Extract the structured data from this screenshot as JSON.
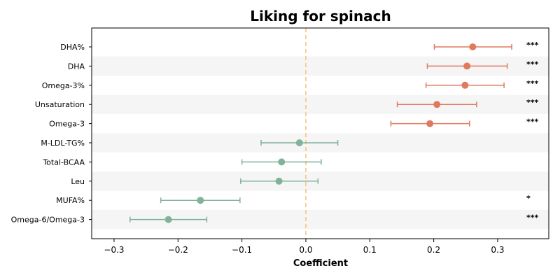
{
  "chart_data": {
    "type": "scatter",
    "title": "Liking for spinach",
    "xlabel": "Coefficient",
    "ylabel": "",
    "xlim": [
      -0.335,
      0.38
    ],
    "xticks": [
      -0.3,
      -0.2,
      -0.1,
      0.0,
      0.1,
      0.2,
      0.3
    ],
    "xtick_labels": [
      "−0.3",
      "−0.2",
      "−0.1",
      "0.0",
      "0.1",
      "0.2",
      "0.3"
    ],
    "reference_line": {
      "x": 0,
      "style": "dashed",
      "color": "#f5c27a"
    },
    "colors": {
      "positive": "#e07a5f",
      "negative": "#81b29a",
      "band": "#f5f5f5"
    },
    "series": [
      {
        "values": [
          {
            "label": "DHA%",
            "estimate": 0.261,
            "ci": [
              0.201,
              0.322
            ],
            "sig": "***"
          },
          {
            "label": "DHA",
            "estimate": 0.252,
            "ci": [
              0.19,
              0.315
            ],
            "sig": "***"
          },
          {
            "label": "Omega-3%",
            "estimate": 0.249,
            "ci": [
              0.188,
              0.31
            ],
            "sig": "***"
          },
          {
            "label": "Unsaturation",
            "estimate": 0.205,
            "ci": [
              0.143,
              0.267
            ],
            "sig": "***"
          },
          {
            "label": "Omega-3",
            "estimate": 0.194,
            "ci": [
              0.133,
              0.256
            ],
            "sig": "***"
          },
          {
            "label": "M-LDL-TG%",
            "estimate": -0.01,
            "ci": [
              -0.07,
              0.05
            ],
            "sig": ""
          },
          {
            "label": "Total-BCAA",
            "estimate": -0.038,
            "ci": [
              -0.1,
              0.024
            ],
            "sig": ""
          },
          {
            "label": "Leu",
            "estimate": -0.042,
            "ci": [
              -0.102,
              0.019
            ],
            "sig": ""
          },
          {
            "label": "MUFA%",
            "estimate": -0.165,
            "ci": [
              -0.227,
              -0.103
            ],
            "sig": "*"
          },
          {
            "label": "Omega-6/Omega-3",
            "estimate": -0.215,
            "ci": [
              -0.275,
              -0.155
            ],
            "sig": "***"
          }
        ]
      }
    ]
  }
}
